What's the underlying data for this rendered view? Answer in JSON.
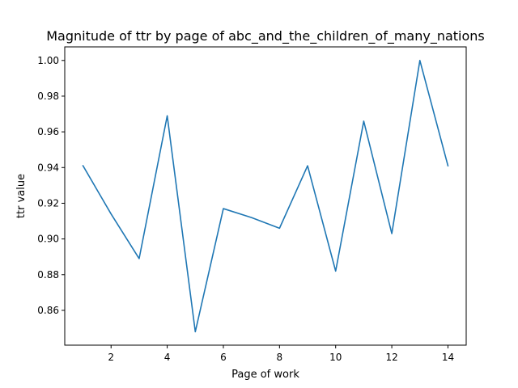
{
  "chart_data": {
    "type": "line",
    "title": "Magnitude of ttr by page of abc_and_the_children_of_many_nations",
    "xlabel": "Page of work",
    "ylabel": "ttr value",
    "xlim": [
      0.35,
      14.65
    ],
    "ylim": [
      0.8405,
      1.0076
    ],
    "xticks": [
      2,
      4,
      6,
      8,
      10,
      12,
      14
    ],
    "xtick_labels": [
      "2",
      "4",
      "6",
      "8",
      "10",
      "12",
      "14"
    ],
    "yticks": [
      0.86,
      0.88,
      0.9,
      0.92,
      0.94,
      0.96,
      0.98,
      1.0
    ],
    "ytick_labels": [
      "0.86",
      "0.88",
      "0.90",
      "0.92",
      "0.94",
      "0.96",
      "0.98",
      "1.00"
    ],
    "grid": false,
    "legend": false,
    "series": [
      {
        "color": "#1f77b4",
        "x": [
          1,
          2,
          3,
          4,
          5,
          6,
          7,
          8,
          9,
          10,
          11,
          12,
          13,
          14
        ],
        "y": [
          0.941,
          0.914,
          0.889,
          0.969,
          0.848,
          0.917,
          0.912,
          0.906,
          0.941,
          0.882,
          0.966,
          0.903,
          1.0,
          0.941
        ]
      }
    ]
  }
}
